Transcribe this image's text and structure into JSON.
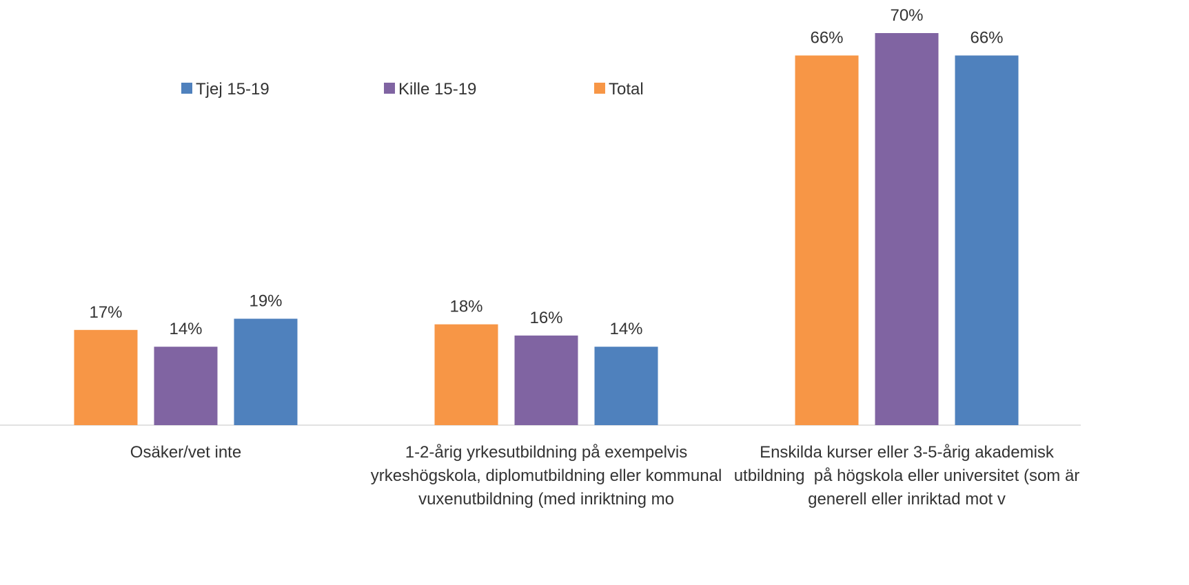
{
  "chart_data": {
    "type": "bar",
    "categories": [
      "Osäker/vet inte",
      "1-2-årig yrkesutbildning på exempelvis yrkeshögskola, diplomutbildning eller kommunal vuxenutbildning (med inriktning mo",
      "Enskilda kurser eller 3-5-årig akademisk utbildning  på högskola eller universitet (som är generell eller inriktad mot v"
    ],
    "series": [
      {
        "name": "Tjej 15-19",
        "color": "#4f81bd",
        "values": [
          19,
          14,
          66
        ],
        "value_labels": [
          "19%",
          "14%",
          "66%"
        ]
      },
      {
        "name": "Kille 15-19",
        "color": "#8064a2",
        "values": [
          14,
          16,
          70
        ],
        "value_labels": [
          "14%",
          "16%",
          "70%"
        ]
      },
      {
        "name": "Total",
        "color": "#f79646",
        "values": [
          17,
          18,
          66
        ],
        "value_labels": [
          "17%",
          "18%",
          "66%"
        ]
      }
    ],
    "ylim": [
      0,
      70
    ],
    "legend": "top"
  }
}
